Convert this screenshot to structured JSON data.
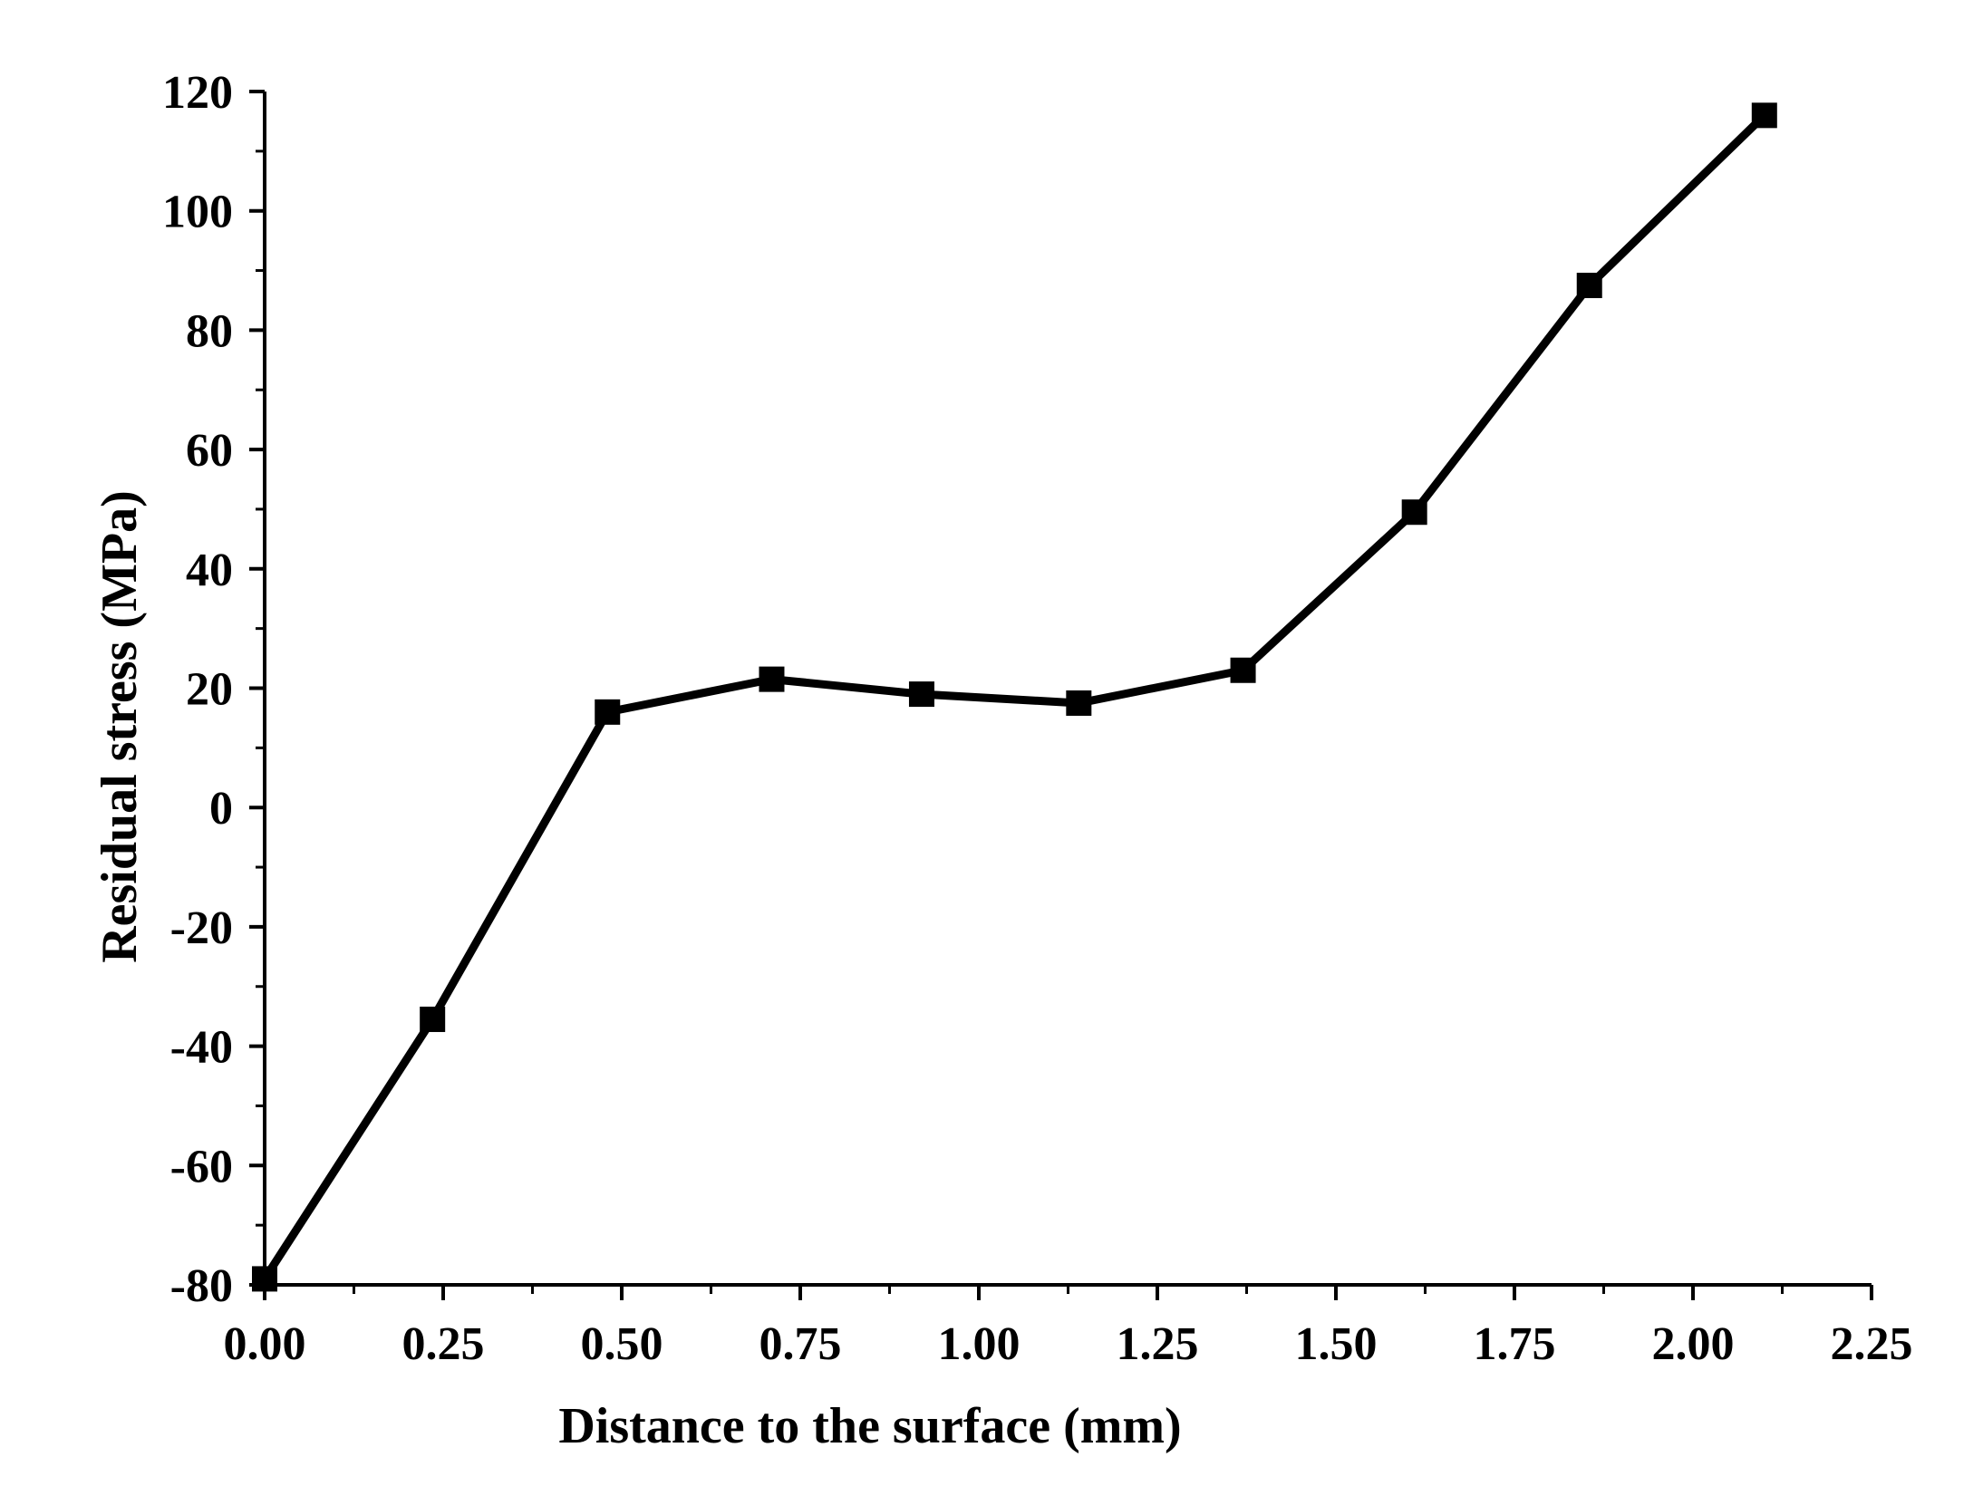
{
  "chart_data": {
    "type": "line",
    "title": "",
    "xlabel": "Distance to the surface (mm)",
    "ylabel": "Residual stress (MPa)",
    "xlim": [
      0.0,
      2.25
    ],
    "ylim": [
      -80,
      120
    ],
    "xticks": [
      "0.00",
      "0.25",
      "0.50",
      "0.75",
      "1.00",
      "1.25",
      "1.50",
      "1.75",
      "2.00",
      "2.25"
    ],
    "yticks": [
      "-80",
      "-60",
      "-40",
      "-20",
      "0",
      "20",
      "40",
      "60",
      "80",
      "100",
      "120"
    ],
    "grid": false,
    "legend": "none",
    "marker": "square",
    "color": "#000000",
    "series": [
      {
        "x": [
          0.0,
          0.235,
          0.48,
          0.71,
          0.92,
          1.14,
          1.37,
          1.61,
          1.855,
          2.1
        ],
        "y": [
          -79,
          -35.5,
          16,
          21.5,
          19,
          17.5,
          23,
          49.5,
          87.5,
          116
        ]
      }
    ]
  }
}
